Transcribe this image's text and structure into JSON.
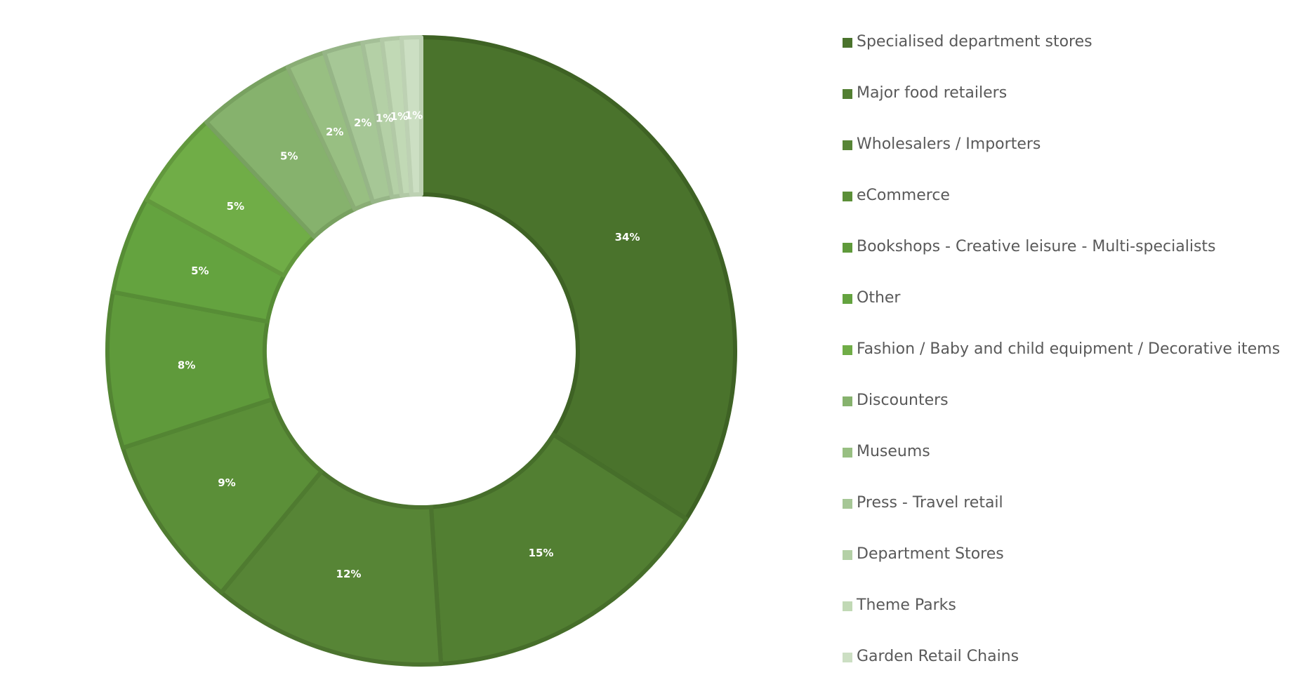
{
  "chart_data": {
    "type": "pie",
    "variant": "donut",
    "categories": [
      "Specialised department stores",
      "Major food retailers",
      "Wholesalers / Importers",
      "eCommerce",
      "Bookshops - Creative leisure - Multi-specialists",
      "Other",
      "Fashion / Baby and child equipment / Decorative items",
      "Discounters",
      "Museums",
      "Press - Travel retail",
      "Department Stores",
      "Theme Parks",
      "Garden Retail Chains"
    ],
    "values": [
      34,
      15,
      12,
      9,
      8,
      5,
      5,
      5,
      2,
      2,
      1,
      1,
      1
    ],
    "data_labels": [
      "34%",
      "15%",
      "12%",
      "9%",
      "8%",
      "5%",
      "5%",
      "5%",
      "2%",
      "2%",
      "1%",
      "1%",
      "1%"
    ],
    "colors": [
      "#4a732c",
      "#527f32",
      "#578536",
      "#5b8f38",
      "#5f9a3b",
      "#64a33f",
      "#70ad47",
      "#86b26d",
      "#98bf82",
      "#a6c796",
      "#b4d0a6",
      "#c1d9b5",
      "#ccdfc3"
    ],
    "stroke_colors": [
      "#3e6224",
      "#466e2a",
      "#4b732e",
      "#4f7b30",
      "#538533",
      "#578d36",
      "#62983d",
      "#78a160",
      "#8aad75",
      "#96b587",
      "#a4bf97",
      "#b2c9a6",
      "#bdd1b3"
    ],
    "legend_position": "right",
    "title": ""
  }
}
